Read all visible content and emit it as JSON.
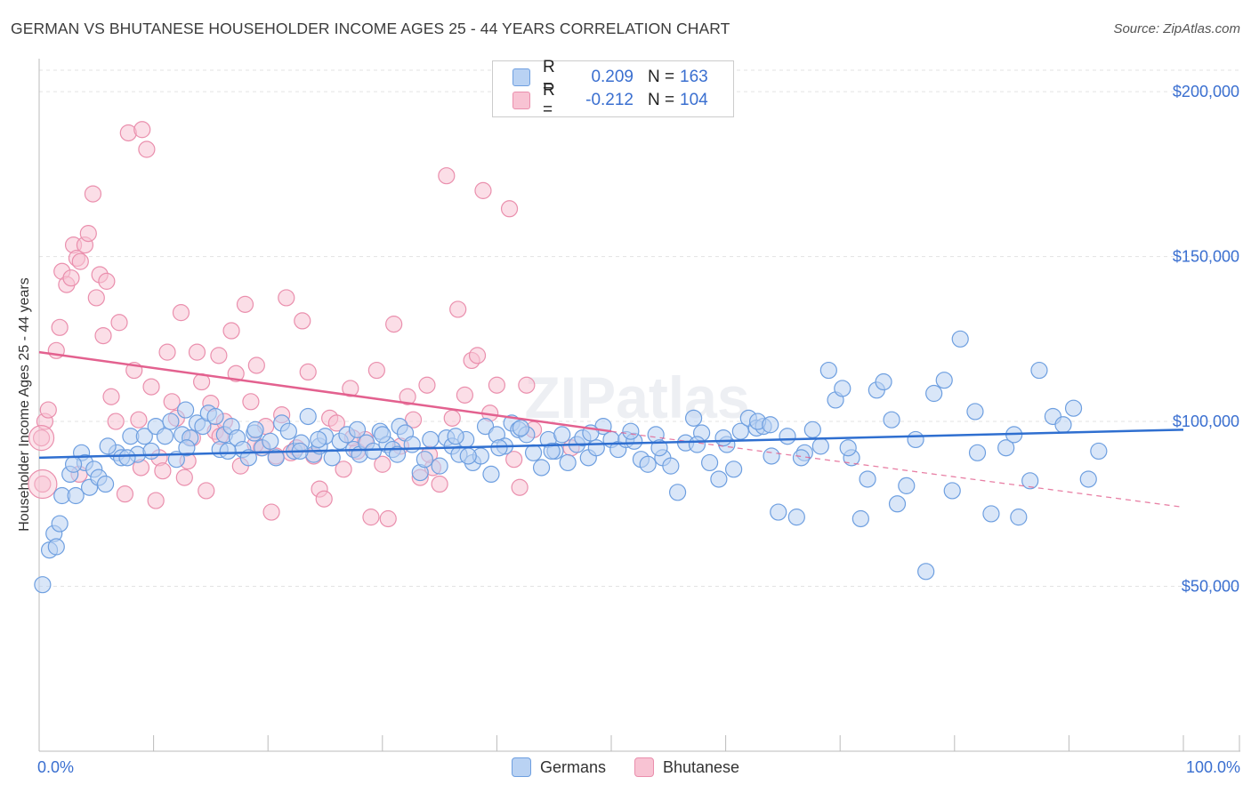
{
  "header": {
    "title": "GERMAN VS BHUTANESE HOUSEHOLDER INCOME AGES 25 - 44 YEARS CORRELATION CHART",
    "source": "Source: ZipAtlas.com"
  },
  "watermark": "ZIPatlas",
  "legend": {
    "rows": [
      {
        "r_label": "R =",
        "r_value": "0.209",
        "n_label": "N =",
        "n_value": "163"
      },
      {
        "r_label": "R =",
        "r_value": "-0.212",
        "n_label": "N =",
        "n_value": "104"
      }
    ]
  },
  "bottom_legend": {
    "germans": "Germans",
    "bhutanese": "Bhutanese"
  },
  "colors": {
    "german_fill": "#b9d2f3",
    "german_stroke": "#6e9fe0",
    "german_line": "#2f6fd0",
    "bhutan_fill": "#f8c3d3",
    "bhutan_stroke": "#ea8fad",
    "bhutan_line": "#e3618f",
    "tick_label": "#3a6fd0",
    "grid": "#e3e3e3"
  },
  "chart_data": {
    "type": "scatter",
    "title": "GERMAN VS BHUTANESE HOUSEHOLDER INCOME AGES 25 - 44 YEARS CORRELATION CHART",
    "xlabel": "",
    "ylabel": "Householder Income Ages 25 - 44 years",
    "xlim": [
      0,
      100
    ],
    "ylim": [
      0,
      210000
    ],
    "x_tick_labels": [
      "0.0%",
      "100.0%"
    ],
    "y_ticks": [
      50000,
      100000,
      150000,
      200000
    ],
    "y_tick_labels": [
      "$50,000",
      "$100,000",
      "$150,000",
      "$200,000"
    ],
    "grid": "horizontal dashed",
    "legend_placement": "top-center",
    "series": [
      {
        "name": "Germans",
        "r": 0.209,
        "n": 163,
        "trend": {
          "x": [
            0,
            100
          ],
          "y": [
            89000,
            97500
          ]
        },
        "points": [
          [
            0.3,
            50500
          ],
          [
            0.9,
            61000
          ],
          [
            1.3,
            66000
          ],
          [
            1.8,
            69000
          ],
          [
            2.0,
            77500
          ],
          [
            2.7,
            84000
          ],
          [
            3.2,
            77500
          ],
          [
            3.7,
            90500
          ],
          [
            4.0,
            87500
          ],
          [
            4.4,
            80000
          ],
          [
            4.8,
            85500
          ],
          [
            5.2,
            83000
          ],
          [
            5.8,
            81000
          ],
          [
            6.8,
            90500
          ],
          [
            7.2,
            89000
          ],
          [
            8.0,
            95500
          ],
          [
            8.6,
            90000
          ],
          [
            9.2,
            95500
          ],
          [
            9.8,
            91000
          ],
          [
            10.2,
            98500
          ],
          [
            11.0,
            95500
          ],
          [
            11.5,
            100000
          ],
          [
            12.0,
            88500
          ],
          [
            12.5,
            96000
          ],
          [
            12.8,
            103500
          ],
          [
            13.2,
            95000
          ],
          [
            13.8,
            99500
          ],
          [
            14.3,
            98500
          ],
          [
            14.8,
            102500
          ],
          [
            15.4,
            101500
          ],
          [
            15.8,
            91500
          ],
          [
            16.2,
            96000
          ],
          [
            16.8,
            98500
          ],
          [
            17.3,
            95000
          ],
          [
            17.8,
            91500
          ],
          [
            18.3,
            89000
          ],
          [
            18.8,
            96500
          ],
          [
            19.5,
            92000
          ],
          [
            20.2,
            94000
          ],
          [
            20.7,
            89000
          ],
          [
            21.2,
            99500
          ],
          [
            21.8,
            97000
          ],
          [
            22.3,
            91000
          ],
          [
            22.9,
            93500
          ],
          [
            23.5,
            101500
          ],
          [
            24.0,
            90000
          ],
          [
            24.5,
            92500
          ],
          [
            25.0,
            95500
          ],
          [
            25.6,
            89000
          ],
          [
            26.3,
            94000
          ],
          [
            26.9,
            96000
          ],
          [
            27.5,
            91500
          ],
          [
            28.0,
            90000
          ],
          [
            28.6,
            93500
          ],
          [
            29.2,
            91000
          ],
          [
            29.8,
            97000
          ],
          [
            30.4,
            93000
          ],
          [
            30.9,
            91500
          ],
          [
            31.5,
            98500
          ],
          [
            32.0,
            96500
          ],
          [
            32.6,
            93000
          ],
          [
            33.3,
            84500
          ],
          [
            33.7,
            88500
          ],
          [
            34.2,
            94500
          ],
          [
            35.0,
            86500
          ],
          [
            35.6,
            95000
          ],
          [
            36.1,
            92500
          ],
          [
            36.7,
            90000
          ],
          [
            37.3,
            94500
          ],
          [
            37.9,
            87500
          ],
          [
            38.6,
            89500
          ],
          [
            39.0,
            98500
          ],
          [
            39.5,
            84000
          ],
          [
            40.0,
            96000
          ],
          [
            40.7,
            92500
          ],
          [
            41.3,
            99500
          ],
          [
            41.9,
            97500
          ],
          [
            42.6,
            96000
          ],
          [
            43.2,
            90500
          ],
          [
            43.9,
            86000
          ],
          [
            44.5,
            94500
          ],
          [
            45.1,
            91000
          ],
          [
            45.7,
            96000
          ],
          [
            46.2,
            87500
          ],
          [
            47.0,
            93000
          ],
          [
            47.5,
            95000
          ],
          [
            48.0,
            89000
          ],
          [
            48.7,
            92000
          ],
          [
            49.3,
            98500
          ],
          [
            50.0,
            94500
          ],
          [
            50.6,
            91500
          ],
          [
            51.3,
            94500
          ],
          [
            52.0,
            94000
          ],
          [
            52.6,
            88500
          ],
          [
            53.2,
            87000
          ],
          [
            53.9,
            96000
          ],
          [
            54.5,
            89000
          ],
          [
            55.2,
            86500
          ],
          [
            55.8,
            78500
          ],
          [
            56.5,
            93500
          ],
          [
            57.2,
            101000
          ],
          [
            57.9,
            96500
          ],
          [
            58.6,
            87500
          ],
          [
            59.4,
            82500
          ],
          [
            60.1,
            93000
          ],
          [
            60.7,
            85500
          ],
          [
            61.3,
            97000
          ],
          [
            62.0,
            101000
          ],
          [
            62.7,
            98000
          ],
          [
            63.3,
            98500
          ],
          [
            64.0,
            89500
          ],
          [
            64.6,
            72500
          ],
          [
            65.4,
            95500
          ],
          [
            66.2,
            71000
          ],
          [
            66.9,
            90500
          ],
          [
            67.6,
            97500
          ],
          [
            68.3,
            92500
          ],
          [
            69.0,
            115500
          ],
          [
            69.6,
            106500
          ],
          [
            70.2,
            110000
          ],
          [
            71.0,
            89000
          ],
          [
            71.8,
            70500
          ],
          [
            72.4,
            82500
          ],
          [
            73.2,
            109500
          ],
          [
            73.8,
            112000
          ],
          [
            74.5,
            100500
          ],
          [
            75.0,
            75000
          ],
          [
            75.8,
            80500
          ],
          [
            76.6,
            94500
          ],
          [
            77.5,
            54500
          ],
          [
            78.2,
            108500
          ],
          [
            79.1,
            112500
          ],
          [
            79.8,
            79000
          ],
          [
            80.5,
            125000
          ],
          [
            81.8,
            103000
          ],
          [
            83.2,
            72000
          ],
          [
            84.5,
            92000
          ],
          [
            85.6,
            71000
          ],
          [
            86.6,
            82000
          ],
          [
            87.4,
            115500
          ],
          [
            88.6,
            101500
          ],
          [
            89.5,
            99000
          ],
          [
            91.7,
            82500
          ],
          [
            92.6,
            91000
          ],
          [
            1.5,
            62000
          ],
          [
            3.0,
            87000
          ],
          [
            6.0,
            92500
          ],
          [
            16.5,
            91000
          ],
          [
            22.8,
            91000
          ],
          [
            27.8,
            97500
          ],
          [
            31.3,
            90000
          ],
          [
            37.5,
            89500
          ],
          [
            44.8,
            91000
          ],
          [
            51.7,
            97000
          ],
          [
            57.5,
            93000
          ],
          [
            62.8,
            100000
          ],
          [
            66.6,
            89000
          ],
          [
            70.7,
            92000
          ],
          [
            59.8,
            95000
          ],
          [
            48.2,
            96500
          ],
          [
            42.1,
            98000
          ],
          [
            36.4,
            95500
          ],
          [
            30.0,
            96000
          ],
          [
            24.4,
            94500
          ],
          [
            18.9,
            97500
          ],
          [
            12.9,
            92000
          ],
          [
            7.7,
            89000
          ],
          [
            82.0,
            90500
          ],
          [
            85.2,
            96000
          ],
          [
            90.4,
            104000
          ],
          [
            40.2,
            92000
          ],
          [
            54.2,
            92000
          ],
          [
            63.9,
            99000
          ]
        ]
      },
      {
        "name": "Bhutanese",
        "r": -0.212,
        "n": 104,
        "trend": {
          "x": [
            0,
            50
          ],
          "y": [
            121000,
            97000
          ]
        },
        "trend_dashed": {
          "x": [
            50,
            100
          ],
          "y": [
            97000,
            74000
          ]
        },
        "points": [
          [
            0.2,
            95000
          ],
          [
            0.3,
            81000
          ],
          [
            0.5,
            100000
          ],
          [
            0.8,
            103500
          ],
          [
            1.5,
            121500
          ],
          [
            1.8,
            128500
          ],
          [
            2.0,
            145500
          ],
          [
            2.4,
            141500
          ],
          [
            2.8,
            143500
          ],
          [
            3.0,
            153500
          ],
          [
            3.3,
            149500
          ],
          [
            3.6,
            148500
          ],
          [
            4.0,
            153500
          ],
          [
            4.3,
            157000
          ],
          [
            4.7,
            169000
          ],
          [
            5.0,
            137500
          ],
          [
            5.3,
            144500
          ],
          [
            5.6,
            126000
          ],
          [
            5.9,
            142500
          ],
          [
            6.3,
            107500
          ],
          [
            6.7,
            100000
          ],
          [
            7.0,
            130000
          ],
          [
            7.5,
            78000
          ],
          [
            7.8,
            187500
          ],
          [
            8.3,
            115500
          ],
          [
            8.7,
            100500
          ],
          [
            9.0,
            188500
          ],
          [
            9.4,
            182500
          ],
          [
            9.8,
            110500
          ],
          [
            10.2,
            76000
          ],
          [
            10.5,
            89000
          ],
          [
            10.8,
            85000
          ],
          [
            11.2,
            121000
          ],
          [
            11.6,
            106000
          ],
          [
            12.0,
            101000
          ],
          [
            12.4,
            133000
          ],
          [
            12.7,
            83000
          ],
          [
            13.0,
            88000
          ],
          [
            13.4,
            95000
          ],
          [
            13.8,
            121000
          ],
          [
            14.2,
            112000
          ],
          [
            14.6,
            79000
          ],
          [
            15.0,
            105500
          ],
          [
            15.4,
            97000
          ],
          [
            15.8,
            95500
          ],
          [
            16.2,
            100000
          ],
          [
            16.8,
            127500
          ],
          [
            17.2,
            114500
          ],
          [
            17.6,
            86500
          ],
          [
            18.0,
            135500
          ],
          [
            18.5,
            106000
          ],
          [
            19.0,
            117000
          ],
          [
            19.4,
            92000
          ],
          [
            19.8,
            98500
          ],
          [
            20.3,
            72500
          ],
          [
            20.7,
            89500
          ],
          [
            21.2,
            102000
          ],
          [
            21.6,
            137500
          ],
          [
            22.0,
            90500
          ],
          [
            22.5,
            92000
          ],
          [
            23.0,
            130500
          ],
          [
            23.5,
            115000
          ],
          [
            24.0,
            89500
          ],
          [
            24.5,
            79500
          ],
          [
            24.9,
            76500
          ],
          [
            25.4,
            101000
          ],
          [
            26.0,
            99500
          ],
          [
            26.6,
            85500
          ],
          [
            27.2,
            110000
          ],
          [
            27.8,
            91000
          ],
          [
            28.5,
            94500
          ],
          [
            29.0,
            71000
          ],
          [
            29.5,
            115500
          ],
          [
            30.0,
            87000
          ],
          [
            30.5,
            70500
          ],
          [
            31.0,
            129500
          ],
          [
            31.6,
            92500
          ],
          [
            32.2,
            107500
          ],
          [
            32.7,
            100500
          ],
          [
            33.3,
            83000
          ],
          [
            33.9,
            111000
          ],
          [
            34.4,
            86000
          ],
          [
            35.0,
            81000
          ],
          [
            35.6,
            174500
          ],
          [
            36.1,
            101000
          ],
          [
            36.6,
            134000
          ],
          [
            37.2,
            108000
          ],
          [
            37.8,
            118500
          ],
          [
            38.3,
            120000
          ],
          [
            38.8,
            170000
          ],
          [
            39.4,
            102500
          ],
          [
            40.0,
            111000
          ],
          [
            41.1,
            164500
          ],
          [
            41.5,
            88500
          ],
          [
            42.0,
            80000
          ],
          [
            42.6,
            111000
          ],
          [
            43.2,
            97500
          ],
          [
            46.5,
            92000
          ],
          [
            3.5,
            84000
          ],
          [
            8.9,
            86000
          ],
          [
            15.7,
            120000
          ],
          [
            27.4,
            95000
          ],
          [
            34.1,
            90000
          ],
          [
            18.9,
            93000
          ]
        ]
      }
    ]
  }
}
